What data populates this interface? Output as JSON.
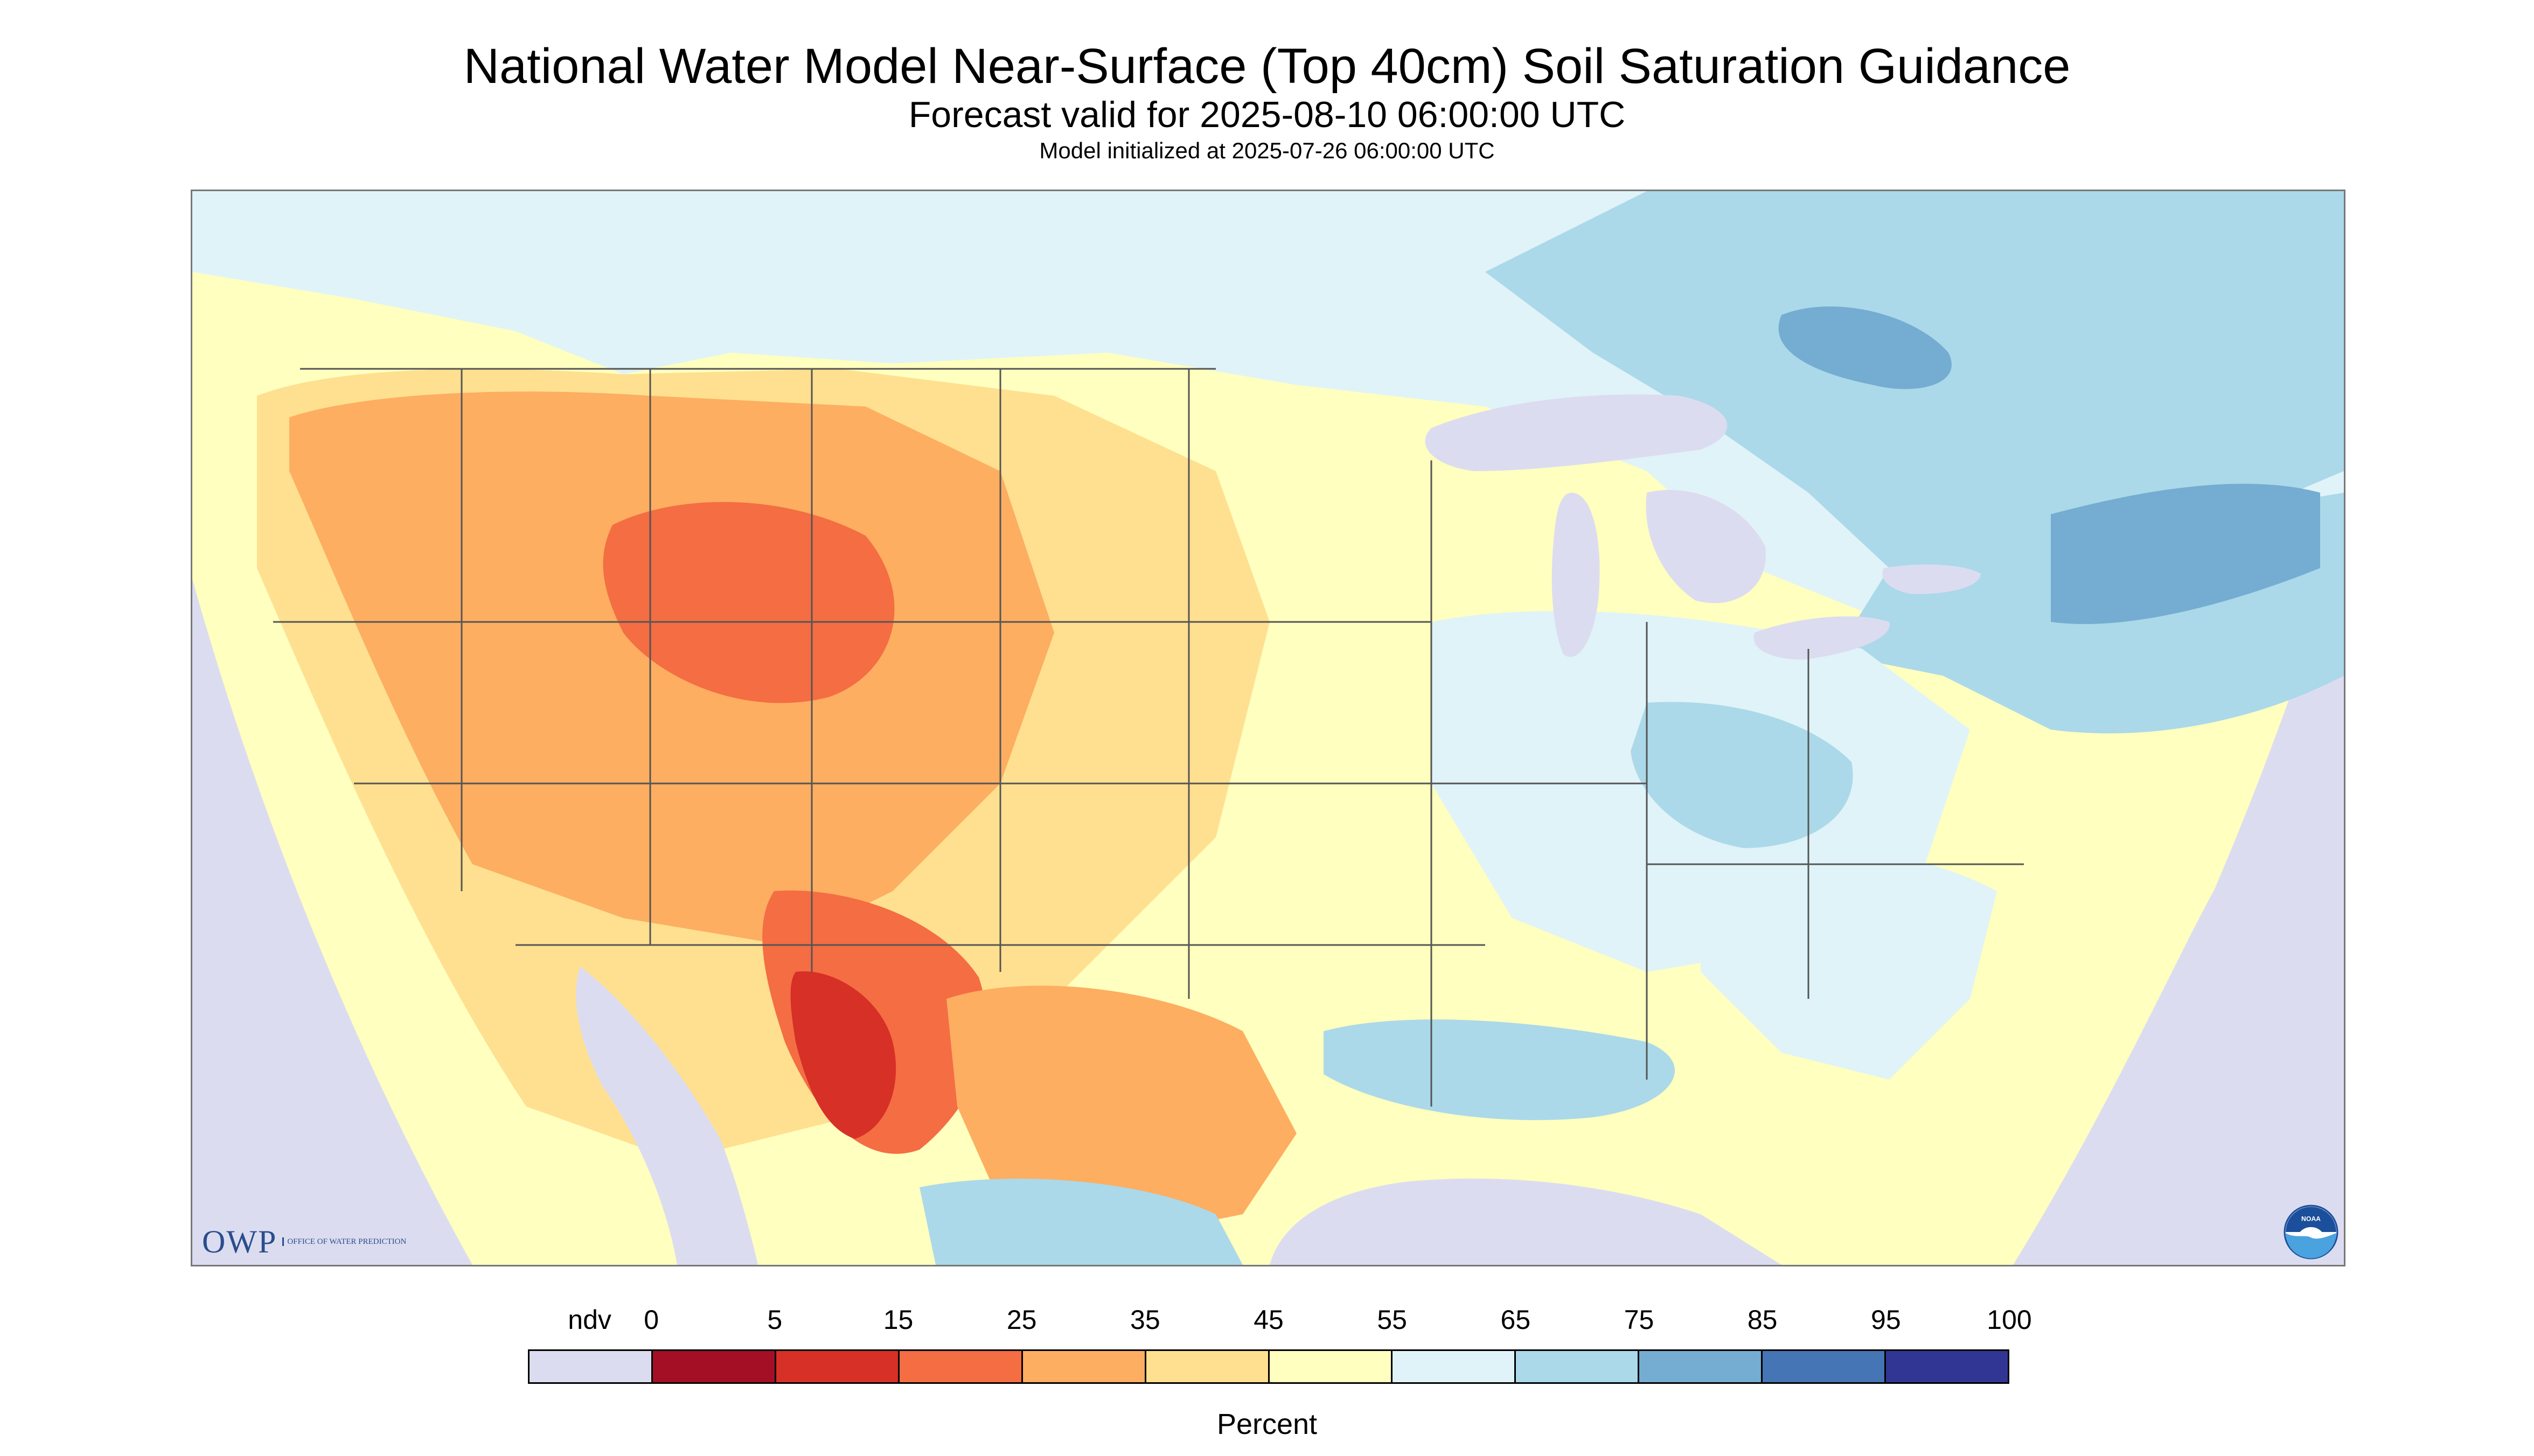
{
  "title": "National Water Model Near-Surface (Top 40cm) Soil Saturation Guidance",
  "subtitle": "Forecast valid for 2025-08-10 06:00:00 UTC",
  "init_line": "Model initialized at 2025-07-26 06:00:00 UTC",
  "logos": {
    "owp_text": "OWP",
    "owp_subtext": "Office of Water Prediction",
    "noaa_text": "NOAA"
  },
  "legend": {
    "ndv_label": "ndv",
    "unit_label": "Percent",
    "ticks": [
      "0",
      "5",
      "15",
      "25",
      "35",
      "45",
      "55",
      "65",
      "75",
      "85",
      "95",
      "100"
    ],
    "colors": [
      "#dcdcf0",
      "#a50f26",
      "#d73027",
      "#f46d43",
      "#fdae61",
      "#fee090",
      "#ffffbf",
      "#e0f3f8",
      "#abd9e9",
      "#74add1",
      "#4575b4",
      "#313695"
    ]
  }
}
